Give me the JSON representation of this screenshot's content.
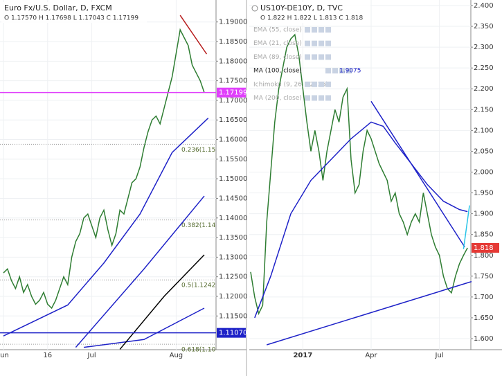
{
  "chart_data": [
    {
      "type": "line",
      "title": "Euro Fx/U.S. Dollar, D, FXCM",
      "subtitle": "O 1.17570 H 1.17698 L 1.17043 C 1.17199",
      "categories": [
        "Jun",
        null,
        null,
        null,
        null,
        null,
        null,
        null,
        null,
        null,
        null,
        "16",
        null,
        null,
        null,
        null,
        null,
        null,
        null,
        null,
        null,
        null,
        "Jul",
        null,
        null,
        null,
        null,
        null,
        null,
        null,
        null,
        null,
        null,
        null,
        null,
        null,
        null,
        null,
        null,
        null,
        null,
        null,
        null,
        "Aug",
        null,
        null,
        null,
        null,
        null,
        null,
        null
      ],
      "series": [
        {
          "color": "#2e7d32",
          "values": [
            1.126,
            1.127,
            1.124,
            1.122,
            1.125,
            1.121,
            1.123,
            1.12,
            1.118,
            1.119,
            1.121,
            1.118,
            1.117,
            1.119,
            1.122,
            1.125,
            1.123,
            1.13,
            1.134,
            1.136,
            1.14,
            1.141,
            1.138,
            1.135,
            1.14,
            1.142,
            1.137,
            1.133,
            1.136,
            1.142,
            1.141,
            1.145,
            1.149,
            1.15,
            1.153,
            1.158,
            1.162,
            1.165,
            1.166,
            1.164,
            1.168,
            1.172,
            1.176,
            1.182,
            1.188,
            1.186,
            1.184,
            1.179,
            1.177,
            1.175,
            1.17199
          ]
        }
      ],
      "lines": [
        {
          "color": "#1e22c8",
          "x": [
            0,
            16,
            25,
            34,
            42,
            51
          ],
          "values": [
            1.1099,
            1.1178,
            1.1285,
            1.141,
            1.1567,
            1.1655
          ]
        },
        {
          "color": "#1e22c8",
          "x": [
            18,
            35,
            50
          ],
          "values": [
            1.107,
            1.127,
            1.1456
          ]
        },
        {
          "color": "#1e22c8",
          "x": [
            20,
            35,
            50
          ],
          "values": [
            1.107,
            1.109,
            1.117
          ]
        },
        {
          "color": "#000000",
          "x": [
            29,
            40,
            50
          ],
          "values": [
            1.1065,
            1.12,
            1.1306
          ]
        },
        {
          "color": "#b71c1c",
          "x": [
            44,
            50.6
          ],
          "values": [
            1.1917,
            1.1818
          ]
        }
      ],
      "hlines": [
        {
          "value": 1.17199,
          "color": "#e040fb"
        },
        {
          "value": 1.1107,
          "label": "1.11070",
          "color": "#1e22c8"
        }
      ],
      "fib": [
        {
          "value": 1.1588,
          "label": "0.236(1.15"
        },
        {
          "value": 1.1395,
          "label": "0.382(1.14"
        },
        {
          "value": 1.1242,
          "label": "0.5(1.1242"
        },
        {
          "value": 1.1078,
          "label": "0.618(1.10"
        }
      ],
      "ylim": [
        1.1064,
        1.1956
      ],
      "yticks": [
        {
          "value": 1.19,
          "label": "1.19000"
        },
        {
          "value": 1.185,
          "label": "1.18500"
        },
        {
          "value": 1.18,
          "label": "1.18000"
        },
        {
          "value": 1.175,
          "label": "1.17500"
        },
        {
          "value": 1.17,
          "label": "1.17000"
        },
        {
          "value": 1.165,
          "label": "1.16500"
        },
        {
          "value": 1.16,
          "label": "1.16000"
        },
        {
          "value": 1.155,
          "label": "1.15500"
        },
        {
          "value": 1.15,
          "label": "1.15000"
        },
        {
          "value": 1.145,
          "label": "1.14500"
        },
        {
          "value": 1.14,
          "label": "1.14000"
        },
        {
          "value": 1.135,
          "label": "1.13500"
        },
        {
          "value": 1.13,
          "label": "1.13000"
        },
        {
          "value": 1.125,
          "label": "1.12500"
        },
        {
          "value": 1.12,
          "label": "1.12000"
        },
        {
          "value": 1.115,
          "label": "1.11500"
        }
      ],
      "grid": true
    },
    {
      "type": "line",
      "title": "US10Y-DE10Y, D, TVC",
      "subtitle": "O 1.822 H 1.822 L 1.813 C 1.818",
      "indicators": [
        {
          "label": "EMA (55, close)"
        },
        {
          "label": "EMA (21, close)"
        },
        {
          "label": "EMA (89, close)"
        },
        {
          "label": "MA (100, close)",
          "value": 1.9075
        },
        {
          "label": "Ichimoku (9, 26, 52, 26)"
        },
        {
          "label": "MA (200, close)"
        }
      ],
      "categories": [
        null,
        null,
        null,
        null,
        null,
        null,
        null,
        null,
        null,
        null,
        null,
        null,
        null,
        "2017",
        null,
        null,
        null,
        null,
        null,
        null,
        null,
        null,
        null,
        null,
        null,
        null,
        null,
        null,
        null,
        null,
        "Apr",
        null,
        null,
        null,
        null,
        null,
        null,
        null,
        null,
        null,
        null,
        null,
        null,
        null,
        null,
        null,
        null,
        "Jul",
        null,
        null,
        null,
        null,
        null,
        null,
        null
      ],
      "series": [
        {
          "color": "#2e7d32",
          "values": [
            1.76,
            1.7,
            1.66,
            1.68,
            1.88,
            2.0,
            2.12,
            2.2,
            2.25,
            2.3,
            2.32,
            2.33,
            2.28,
            2.2,
            2.12,
            2.05,
            2.1,
            2.05,
            1.98,
            2.05,
            2.1,
            2.15,
            2.12,
            2.18,
            2.2,
            2.03,
            1.95,
            1.97,
            2.05,
            2.1,
            2.08,
            2.05,
            2.02,
            2.0,
            1.98,
            1.93,
            1.95,
            1.9,
            1.88,
            1.85,
            1.88,
            1.9,
            1.88,
            1.95,
            1.9,
            1.85,
            1.82,
            1.8,
            1.75,
            1.72,
            1.71,
            1.75,
            1.78,
            1.8,
            1.818
          ]
        }
      ],
      "lines": [
        {
          "color": "#1e22c8",
          "x": [
            1,
            5,
            10,
            15,
            20,
            25,
            30,
            33,
            36,
            40,
            44,
            48,
            52,
            54
          ],
          "values": [
            1.65,
            1.75,
            1.9,
            1.98,
            2.03,
            2.08,
            2.12,
            2.11,
            2.07,
            2.02,
            1.97,
            1.93,
            1.91,
            1.905
          ]
        },
        {
          "color": "#1e22c8",
          "x": [
            30,
            53.3
          ],
          "values": [
            2.17,
            1.82
          ]
        },
        {
          "color": "#1e22c8",
          "x": [
            4,
            55
          ],
          "values": [
            1.585,
            1.737
          ]
        },
        {
          "color": "#29c4e8",
          "x": [
            53,
            54.5
          ],
          "values": [
            1.815,
            1.92
          ]
        }
      ],
      "hlines": [
        {
          "value": 1.818,
          "color": "#e53935"
        }
      ],
      "ylim": [
        1.5734,
        2.4133
      ],
      "yticks": [
        {
          "value": 2.4,
          "label": "2.400"
        },
        {
          "value": 2.35,
          "label": "2.350"
        },
        {
          "value": 2.3,
          "label": "2.300"
        },
        {
          "value": 2.25,
          "label": "2.250"
        },
        {
          "value": 2.2,
          "label": "2.200"
        },
        {
          "value": 2.15,
          "label": "2.150"
        },
        {
          "value": 2.1,
          "label": "2.100"
        },
        {
          "value": 2.05,
          "label": "2.050"
        },
        {
          "value": 2.0,
          "label": "2.000"
        },
        {
          "value": 1.95,
          "label": "1.950"
        },
        {
          "value": 1.9,
          "label": "1.900"
        },
        {
          "value": 1.85,
          "label": "1.850"
        },
        {
          "value": 1.8,
          "label": "1.800"
        },
        {
          "value": 1.75,
          "label": "1.750"
        },
        {
          "value": 1.7,
          "label": "1.700"
        },
        {
          "value": 1.65,
          "label": "1.650"
        },
        {
          "value": 1.6,
          "label": "1.600"
        }
      ],
      "grid": true
    }
  ]
}
